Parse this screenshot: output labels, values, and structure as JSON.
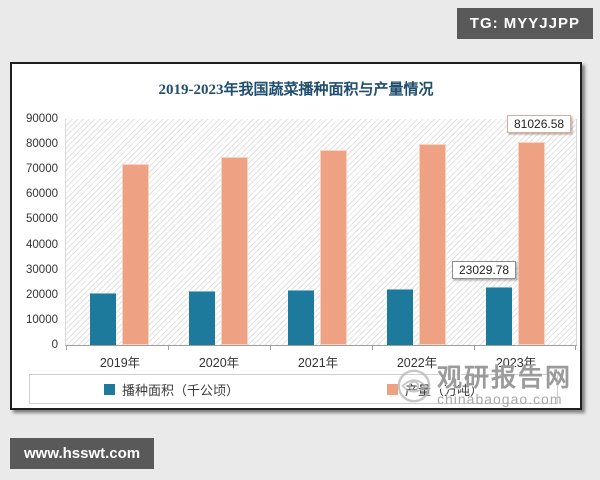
{
  "page": {
    "tg_badge": "TG: MYYJJPP",
    "site_badge": "www.hsswt.com"
  },
  "watermark": {
    "name": "观研报告网",
    "domain": "chinabaogao.com"
  },
  "chart_data": {
    "type": "bar",
    "title": "2019-2023年我国蔬菜播种面积与产量情况",
    "categories": [
      "2019年",
      "2020年",
      "2021年",
      "2022年",
      "2023年"
    ],
    "series": [
      {
        "name": "播种面积（千公顷）",
        "color": "#1e7a9c",
        "values": [
          20900,
          21500,
          21900,
          22400,
          23029.78
        ]
      },
      {
        "name": "产量（万吨）",
        "color": "#efa183",
        "values": [
          72100,
          74900,
          77500,
          80000,
          81026.58
        ]
      }
    ],
    "data_labels": [
      {
        "series": 0,
        "index": 4,
        "text": "23029.78"
      },
      {
        "series": 1,
        "index": 4,
        "text": "81026.58"
      }
    ],
    "ylim": [
      0,
      90000
    ],
    "y_ticks": [
      "0",
      "10000",
      "20000",
      "30000",
      "40000",
      "50000",
      "60000",
      "70000",
      "80000",
      "90000"
    ],
    "grid": false,
    "legend_position": "bottom",
    "xlabel": "",
    "ylabel": ""
  }
}
